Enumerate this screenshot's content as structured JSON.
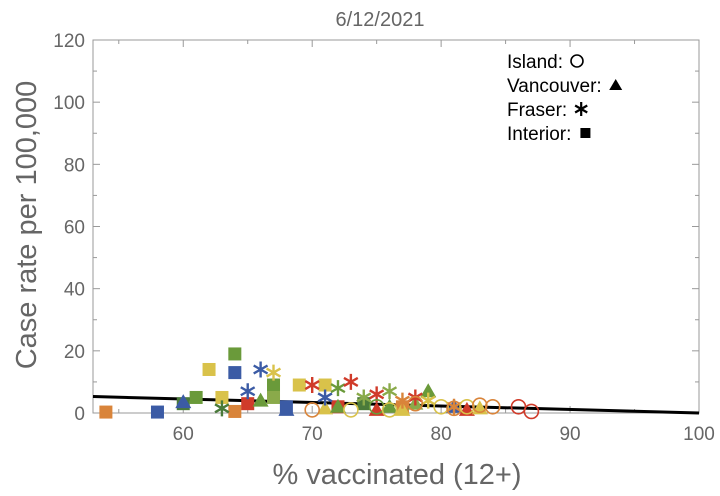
{
  "chart_data": {
    "type": "scatter",
    "title": "6/12/2021",
    "xlabel": "% vaccinated (12+)",
    "ylabel": "Case rate per 100,000",
    "xlim": [
      53,
      100
    ],
    "ylim": [
      0,
      120
    ],
    "xticks": [
      60,
      70,
      80,
      90,
      100
    ],
    "yticks": [
      0,
      20,
      40,
      60,
      80,
      100,
      120
    ],
    "grid": false,
    "legend_position": "top-right",
    "legend": [
      {
        "label": "Island:",
        "marker": "circle-open"
      },
      {
        "label": "Vancouver:",
        "marker": "triangle"
      },
      {
        "label": "Fraser:",
        "marker": "star"
      },
      {
        "label": "Interior:",
        "marker": "square"
      }
    ],
    "trendline": {
      "x": [
        53,
        100
      ],
      "y": [
        5.3,
        0
      ]
    },
    "series": [
      {
        "marker": "square",
        "points": [
          {
            "x": 54,
            "y": 0.3,
            "color": "#d9843a"
          },
          {
            "x": 58,
            "y": 0.3,
            "color": "#3b5ba5"
          },
          {
            "x": 60,
            "y": 3,
            "color": "#4a7a3a"
          },
          {
            "x": 61,
            "y": 5,
            "color": "#6a9a3a"
          },
          {
            "x": 62,
            "y": 14,
            "color": "#d9c24a"
          },
          {
            "x": 63,
            "y": 5,
            "color": "#d9c24a"
          },
          {
            "x": 64,
            "y": 19,
            "color": "#6a9a3a"
          },
          {
            "x": 64,
            "y": 13,
            "color": "#3b5ba5"
          },
          {
            "x": 64,
            "y": 0.5,
            "color": "#d9843a"
          },
          {
            "x": 65,
            "y": 3,
            "color": "#d03b2a"
          },
          {
            "x": 67,
            "y": 9,
            "color": "#6a9a3a"
          },
          {
            "x": 67,
            "y": 5,
            "color": "#8aaa4a"
          },
          {
            "x": 68,
            "y": 2,
            "color": "#3b5ba5"
          },
          {
            "x": 69,
            "y": 9,
            "color": "#d9c24a"
          },
          {
            "x": 71,
            "y": 9,
            "color": "#d9c24a"
          },
          {
            "x": 72,
            "y": 2,
            "color": "#d03b2a"
          },
          {
            "x": 74,
            "y": 3,
            "color": "#4a7a3a"
          },
          {
            "x": 77,
            "y": 2,
            "color": "#d9843a"
          }
        ]
      },
      {
        "marker": "triangle",
        "points": [
          {
            "x": 60,
            "y": 3.5,
            "color": "#3b5ba5"
          },
          {
            "x": 66,
            "y": 4,
            "color": "#6a9a3a"
          },
          {
            "x": 68,
            "y": 1,
            "color": "#3b5ba5"
          },
          {
            "x": 71,
            "y": 1.5,
            "color": "#d9c24a"
          },
          {
            "x": 72,
            "y": 2,
            "color": "#6a9a3a"
          },
          {
            "x": 75,
            "y": 1,
            "color": "#d03b2a"
          },
          {
            "x": 76,
            "y": 2,
            "color": "#6a9a3a"
          },
          {
            "x": 77,
            "y": 1,
            "color": "#d9c24a"
          },
          {
            "x": 78,
            "y": 3,
            "color": "#8aaa4a"
          },
          {
            "x": 79,
            "y": 7,
            "color": "#6a9a3a"
          },
          {
            "x": 81,
            "y": 2,
            "color": "#3b5ba5"
          },
          {
            "x": 82,
            "y": 1,
            "color": "#d03b2a"
          },
          {
            "x": 83,
            "y": 1.5,
            "color": "#d9c24a"
          }
        ]
      },
      {
        "marker": "star",
        "points": [
          {
            "x": 63,
            "y": 1.5,
            "color": "#4a7a3a"
          },
          {
            "x": 65,
            "y": 7,
            "color": "#3b5ba5"
          },
          {
            "x": 66,
            "y": 14,
            "color": "#3b5ba5"
          },
          {
            "x": 67,
            "y": 13,
            "color": "#d9c24a"
          },
          {
            "x": 70,
            "y": 9,
            "color": "#d03b2a"
          },
          {
            "x": 71,
            "y": 5,
            "color": "#3b5ba5"
          },
          {
            "x": 72,
            "y": 8,
            "color": "#6a9a3a"
          },
          {
            "x": 73,
            "y": 10,
            "color": "#d03b2a"
          },
          {
            "x": 74,
            "y": 5,
            "color": "#8aaa4a"
          },
          {
            "x": 75,
            "y": 6,
            "color": "#d03b2a"
          },
          {
            "x": 76,
            "y": 7,
            "color": "#8aaa4a"
          },
          {
            "x": 77,
            "y": 4,
            "color": "#d9843a"
          },
          {
            "x": 78,
            "y": 5,
            "color": "#d03b2a"
          },
          {
            "x": 79,
            "y": 4,
            "color": "#d9c24a"
          },
          {
            "x": 81,
            "y": 2,
            "color": "#d9843a"
          }
        ]
      },
      {
        "marker": "circle-open",
        "points": [
          {
            "x": 70,
            "y": 1,
            "color": "#d9843a"
          },
          {
            "x": 73,
            "y": 1,
            "color": "#d9c24a"
          },
          {
            "x": 75,
            "y": 2,
            "color": "#6a9a3a"
          },
          {
            "x": 76,
            "y": 1,
            "color": "#d9c24a"
          },
          {
            "x": 78,
            "y": 3,
            "color": "#d9843a"
          },
          {
            "x": 80,
            "y": 2,
            "color": "#d9c24a"
          },
          {
            "x": 81,
            "y": 1.5,
            "color": "#d9843a"
          },
          {
            "x": 82,
            "y": 2,
            "color": "#d9c24a"
          },
          {
            "x": 83,
            "y": 2.5,
            "color": "#d9843a"
          },
          {
            "x": 84,
            "y": 2,
            "color": "#d9843a"
          },
          {
            "x": 86,
            "y": 2,
            "color": "#d03b2a"
          },
          {
            "x": 87,
            "y": 0.5,
            "color": "#d03b2a"
          }
        ]
      }
    ]
  }
}
